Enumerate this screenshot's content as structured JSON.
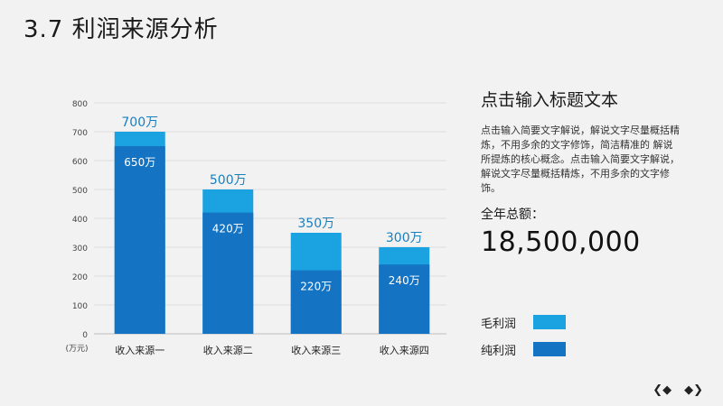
{
  "title": "3.7 利润来源分析",
  "chart_data": {
    "type": "bar",
    "categories": [
      "收入来源一",
      "收入来源二",
      "收入来源三",
      "收入来源四"
    ],
    "series": [
      {
        "name": "毛利润",
        "values": [
          700,
          500,
          350,
          300
        ],
        "labels": [
          "700万",
          "500万",
          "350万",
          "300万"
        ],
        "color": "#1aa3e0"
      },
      {
        "name": "纯利润",
        "values": [
          650,
          420,
          220,
          240
        ],
        "labels": [
          "650万",
          "420万",
          "220万",
          "240万"
        ],
        "color": "#1473c3"
      }
    ],
    "y_ticks": [
      0,
      100,
      200,
      300,
      400,
      500,
      600,
      700,
      800
    ],
    "ylim": [
      0,
      800
    ],
    "y_unit": "(万元)",
    "grid": true
  },
  "side": {
    "heading": "点击输入标题文本",
    "body": "点击输入简要文字解说，解说文字尽量概括精炼，不用多余的文字修饰，简洁精准的 解说所提炼的核心概念。点击输入简要文字解说，解说文字尽量概括精炼，不用多余的文字修饰。",
    "total_label": "全年总额：",
    "total_value": "18,500,000"
  },
  "legend": {
    "items": [
      {
        "label": "毛利润",
        "color": "#1aa3e0"
      },
      {
        "label": "纯利润",
        "color": "#1473c3"
      }
    ]
  },
  "nav": {
    "prev": "◆",
    "next": "◆"
  }
}
